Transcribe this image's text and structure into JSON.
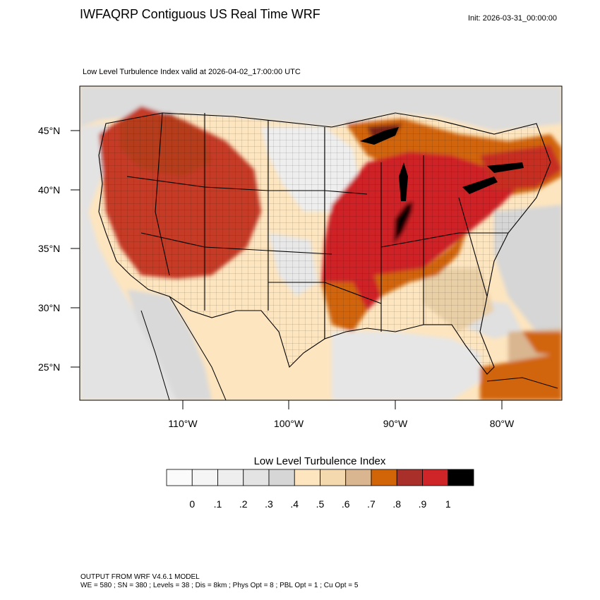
{
  "header": {
    "title": "IWFAQRP Contiguous US Real Time WRF",
    "init": "Init: 2026-03-31_00:00:00",
    "subtitle": "Low Level Turbulence Index valid at 2026-04-02_17:00:00 UTC"
  },
  "map": {
    "lat_ticks": [
      "45°N",
      "40°N",
      "35°N",
      "30°N",
      "25°N"
    ],
    "lon_ticks": [
      "110°W",
      "100°W",
      "90°W",
      "80°W"
    ]
  },
  "legend": {
    "title": "Low Level Turbulence Index",
    "colors": [
      "#fbfbfb",
      "#f5f5f5",
      "#eeeeee",
      "#e3e3e3",
      "#d6d6d6",
      "#fde5bf",
      "#f3d9ad",
      "#d9b690",
      "#d16508",
      "#a82f2a",
      "#cf2428",
      "#000000"
    ],
    "labels": [
      "0",
      ".1",
      ".2",
      ".3",
      ".4",
      ".5",
      ".6",
      ".7",
      ".8",
      ".9",
      "1"
    ]
  },
  "footer": {
    "line1": "OUTPUT FROM WRF V4.6.1 MODEL",
    "line2": "WE = 580 ; SN = 380 ; Levels = 38 ; Dis = 8km ; Phys Opt = 8 ; PBL Opt = 1 ; Cu Opt = 5"
  }
}
